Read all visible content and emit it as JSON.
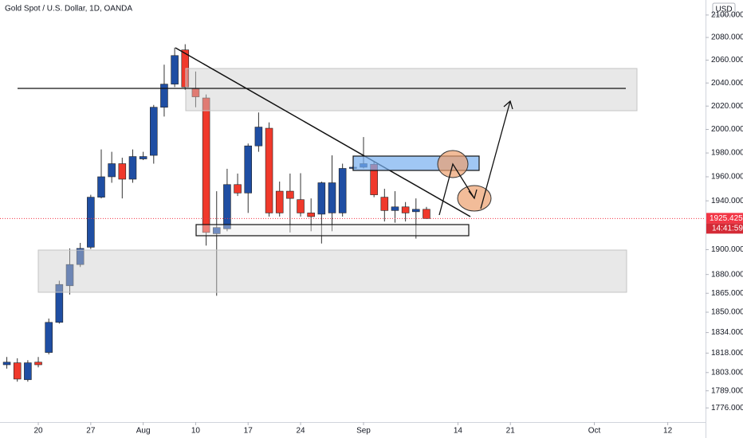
{
  "chart_data": {
    "type": "candlestick",
    "title": "Gold Spot / U.S. Dollar, 1D, OANDA",
    "currency": "USD",
    "last_price": 1925.425,
    "countdown": "14:41:59",
    "log": true,
    "up_color": "#1f4ea3",
    "down_color": "#f0392b",
    "x": [
      0,
      1,
      2,
      3,
      4,
      5,
      6,
      7,
      8,
      9,
      10,
      11,
      12,
      13,
      14,
      15,
      16,
      17,
      18,
      19,
      20,
      21,
      22,
      23,
      24,
      25,
      26,
      27,
      28,
      29,
      30,
      31,
      32,
      33,
      34,
      35,
      36,
      37,
      38,
      39,
      40
    ],
    "open": [
      1809,
      1810.5,
      1797.5,
      1811,
      1818.5,
      1842,
      1871,
      1888,
      1902,
      1943,
      1960,
      1971,
      1958,
      1975,
      1978,
      2019,
      2039,
      2069,
      2035,
      2027,
      1913,
      1917,
      1953.5,
      1946.5,
      1986,
      2001,
      1948,
      1948,
      1941,
      1930,
      1929,
      1930,
      1930,
      1967,
      1968,
      1970.5,
      1943,
      1932,
      1935,
      1931,
      1933
    ],
    "high": [
      1815,
      1814,
      1812.5,
      1815,
      1845,
      1875,
      1901,
      1905.5,
      1945,
      1983,
      1981,
      1976,
      1983,
      1981,
      2021,
      2056,
      2071,
      2074,
      2050,
      2030,
      1948,
      1966.7,
      1962.7,
      1988,
      2014.5,
      2006,
      1956,
      1962.7,
      1963,
      1942,
      1956,
      1978,
      1971,
      1969.5,
      1993.5,
      1972.7,
      1950,
      1948,
      1939,
      1942,
      1935
    ],
    "low": [
      1806,
      1796,
      1796,
      1807,
      1817,
      1841,
      1864,
      1886,
      1900.5,
      1942,
      1955,
      1942,
      1955,
      1974,
      1971,
      2011,
      2036.5,
      2034,
      2019,
      1903.3,
      1863,
      1915,
      1944,
      1930,
      1981,
      1927,
      1927,
      1914,
      1927,
      1915,
      1905,
      1915,
      1927,
      1965,
      1967,
      1943,
      1923,
      1922,
      1923,
      1909,
      1925
    ],
    "close": [
      1811,
      1798,
      1810.5,
      1809,
      1842,
      1872,
      1888,
      1901,
      1943,
      1960,
      1971,
      1958,
      1977,
      1977,
      2019,
      2039,
      2064,
      2036.5,
      2028,
      1914,
      1918,
      1953.5,
      1946.5,
      1986,
      2002,
      1930,
      1930,
      1942,
      1930,
      1927,
      1955,
      1955,
      1967,
      1968,
      1971,
      1945,
      1932,
      1935,
      1930,
      1933,
      1925.425
    ],
    "xlim": [
      -0.65,
      66.6
    ],
    "xticks": [
      {
        "value": 3,
        "label": "20"
      },
      {
        "value": 8,
        "label": "27"
      },
      {
        "value": 13,
        "label": "Aug"
      },
      {
        "value": 18,
        "label": "10"
      },
      {
        "value": 23,
        "label": "17"
      },
      {
        "value": 28,
        "label": "24"
      },
      {
        "value": 34,
        "label": "Sep"
      },
      {
        "value": 43,
        "label": "14"
      },
      {
        "value": 48,
        "label": "21"
      },
      {
        "value": 56,
        "label": "Oct"
      },
      {
        "value": 63,
        "label": "12"
      }
    ],
    "ylim": [
      1765.3,
      2113.5
    ],
    "yticks": [
      {
        "value": 2100,
        "label": "2100.000"
      },
      {
        "value": 2080,
        "label": "2080.000"
      },
      {
        "value": 2060,
        "label": "2060.000"
      },
      {
        "value": 2040,
        "label": "2040.000"
      },
      {
        "value": 2020,
        "label": "2020.000"
      },
      {
        "value": 2000,
        "label": "2000.000"
      },
      {
        "value": 1980,
        "label": "1980.000"
      },
      {
        "value": 1960,
        "label": "1960.000"
      },
      {
        "value": 1940,
        "label": "1940.000"
      },
      {
        "value": 1900,
        "label": "1900.000"
      },
      {
        "value": 1880,
        "label": "1880.000"
      },
      {
        "value": 1865,
        "label": "1865.000"
      },
      {
        "value": 1850,
        "label": "1850.000"
      },
      {
        "value": 1834,
        "label": "1834.000"
      },
      {
        "value": 1818,
        "label": "1818.000"
      },
      {
        "value": 1803,
        "label": "1803.000"
      },
      {
        "value": 1789,
        "label": "1789.000"
      },
      {
        "value": 1776,
        "label": "1776.000"
      }
    ]
  }
}
